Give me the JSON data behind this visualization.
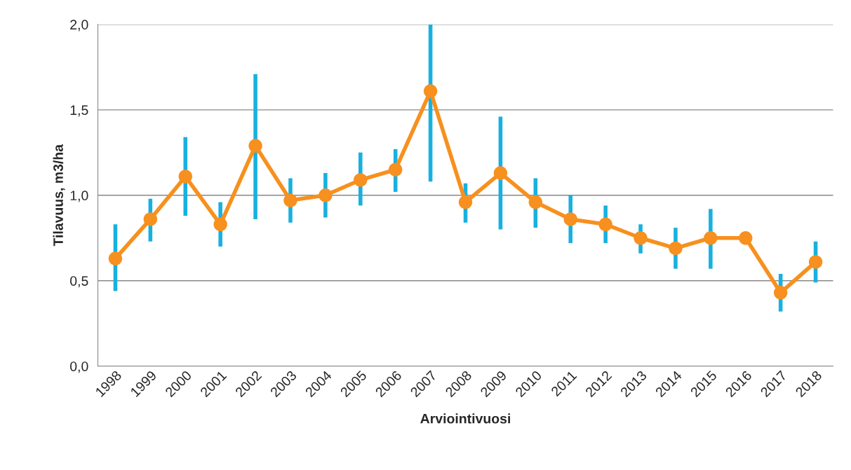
{
  "chart_data": {
    "type": "line",
    "xlabel": "Arviointivuosi",
    "ylabel": "Tilavuus, m3/ha",
    "categories": [
      "1998",
      "1999",
      "2000",
      "2001",
      "2002",
      "2003",
      "2004",
      "2005",
      "2006",
      "2007",
      "2008",
      "2009",
      "2010",
      "2011",
      "2012",
      "2013",
      "2014",
      "2015",
      "2016",
      "2017",
      "2018"
    ],
    "series": [
      {
        "color": "#f7901e",
        "values": [
          0.63,
          0.86,
          1.11,
          0.83,
          1.29,
          0.97,
          1.0,
          1.09,
          1.15,
          1.61,
          0.96,
          1.13,
          0.96,
          0.86,
          0.83,
          0.75,
          0.69,
          0.75,
          0.75,
          0.43,
          0.61
        ],
        "errors": [
          [
            0.44,
            0.83
          ],
          [
            0.73,
            0.98
          ],
          [
            0.88,
            1.34
          ],
          [
            0.7,
            0.96
          ],
          [
            0.86,
            1.71
          ],
          [
            0.84,
            1.1
          ],
          [
            0.87,
            1.13
          ],
          [
            0.94,
            1.25
          ],
          [
            1.02,
            1.27
          ],
          [
            1.08,
            2.0
          ],
          [
            0.84,
            1.07
          ],
          [
            0.8,
            1.46
          ],
          [
            0.81,
            1.1
          ],
          [
            0.72,
            1.0
          ],
          [
            0.72,
            0.94
          ],
          [
            0.66,
            0.83
          ],
          [
            0.57,
            0.81
          ],
          [
            0.57,
            0.92
          ],
          null,
          [
            0.32,
            0.54
          ],
          [
            0.49,
            0.73
          ]
        ]
      }
    ],
    "ylim": [
      0,
      2
    ],
    "yticks": [
      {
        "value": 0,
        "label": "0,0"
      },
      {
        "value": 0.5,
        "label": "0,5"
      },
      {
        "value": 1,
        "label": "1,0"
      },
      {
        "value": 1.5,
        "label": "1,5"
      },
      {
        "value": 2,
        "label": "2,0"
      }
    ],
    "grid": "y",
    "marker": "circle",
    "line_style": "solid"
  }
}
